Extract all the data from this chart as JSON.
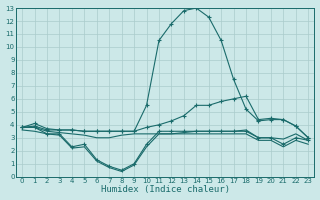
{
  "xlabel": "Humidex (Indice chaleur)",
  "bg_color": "#cce8e8",
  "grid_color": "#aacccc",
  "line_color": "#1a6b6b",
  "xlim": [
    -0.5,
    23.5
  ],
  "ylim": [
    0,
    13
  ],
  "xticks": [
    0,
    1,
    2,
    3,
    4,
    5,
    6,
    7,
    8,
    9,
    10,
    11,
    12,
    13,
    14,
    15,
    16,
    17,
    18,
    19,
    20,
    21,
    22,
    23
  ],
  "yticks": [
    0,
    1,
    2,
    3,
    4,
    5,
    6,
    7,
    8,
    9,
    10,
    11,
    12,
    13
  ],
  "line_peak_x": [
    0,
    1,
    2,
    3,
    4,
    5,
    6,
    7,
    8,
    9,
    10,
    11,
    12,
    13,
    14,
    15,
    16,
    17,
    18,
    19,
    20,
    21,
    22,
    23
  ],
  "line_peak_y": [
    3.8,
    3.9,
    3.6,
    3.6,
    3.6,
    3.5,
    3.5,
    3.5,
    3.5,
    3.5,
    5.5,
    10.5,
    11.8,
    12.8,
    13.0,
    12.3,
    10.5,
    7.5,
    5.2,
    4.3,
    4.4,
    4.4,
    3.9,
    3.0
  ],
  "line_upper_x": [
    0,
    1,
    2,
    3,
    4,
    5,
    6,
    7,
    8,
    9,
    10,
    11,
    12,
    13,
    14,
    15,
    16,
    17,
    18,
    19,
    20,
    21,
    22,
    23
  ],
  "line_upper_y": [
    3.8,
    4.1,
    3.7,
    3.6,
    3.6,
    3.5,
    3.5,
    3.5,
    3.5,
    3.5,
    3.8,
    4.0,
    4.3,
    4.7,
    5.5,
    5.5,
    5.8,
    6.0,
    6.2,
    4.4,
    4.5,
    4.4,
    3.9,
    3.0
  ],
  "line_mid_x": [
    0,
    1,
    2,
    3,
    4,
    5,
    6,
    7,
    8,
    9,
    10,
    11,
    12,
    13,
    14,
    15,
    16,
    17,
    18,
    19,
    20,
    21,
    22,
    23
  ],
  "line_mid_y": [
    3.8,
    3.8,
    3.5,
    3.4,
    3.3,
    3.2,
    3.0,
    3.0,
    3.2,
    3.3,
    3.3,
    3.3,
    3.3,
    3.4,
    3.5,
    3.5,
    3.5,
    3.5,
    3.6,
    3.0,
    3.0,
    2.9,
    3.3,
    2.8
  ],
  "line_low_x": [
    0,
    1,
    2,
    3,
    4,
    5,
    6,
    7,
    8,
    9,
    10,
    11,
    12,
    13,
    14,
    15,
    16,
    17,
    18,
    19,
    20,
    21,
    22,
    23
  ],
  "line_low_y": [
    3.8,
    3.8,
    3.3,
    3.3,
    2.3,
    2.5,
    1.3,
    0.8,
    0.5,
    1.0,
    2.5,
    3.5,
    3.5,
    3.5,
    3.5,
    3.5,
    3.5,
    3.5,
    3.5,
    3.0,
    3.0,
    2.5,
    3.0,
    2.8
  ],
  "line_dip_x": [
    0,
    1,
    2,
    3,
    4,
    5,
    6,
    7,
    8,
    9,
    10,
    11,
    12,
    13,
    14,
    15,
    16,
    17,
    18,
    19,
    20,
    21,
    22,
    23
  ],
  "line_dip_y": [
    3.6,
    3.5,
    3.3,
    3.2,
    2.2,
    2.3,
    1.2,
    0.7,
    0.4,
    0.9,
    2.3,
    3.3,
    3.3,
    3.3,
    3.3,
    3.3,
    3.3,
    3.3,
    3.3,
    2.8,
    2.8,
    2.3,
    2.8,
    2.5
  ]
}
